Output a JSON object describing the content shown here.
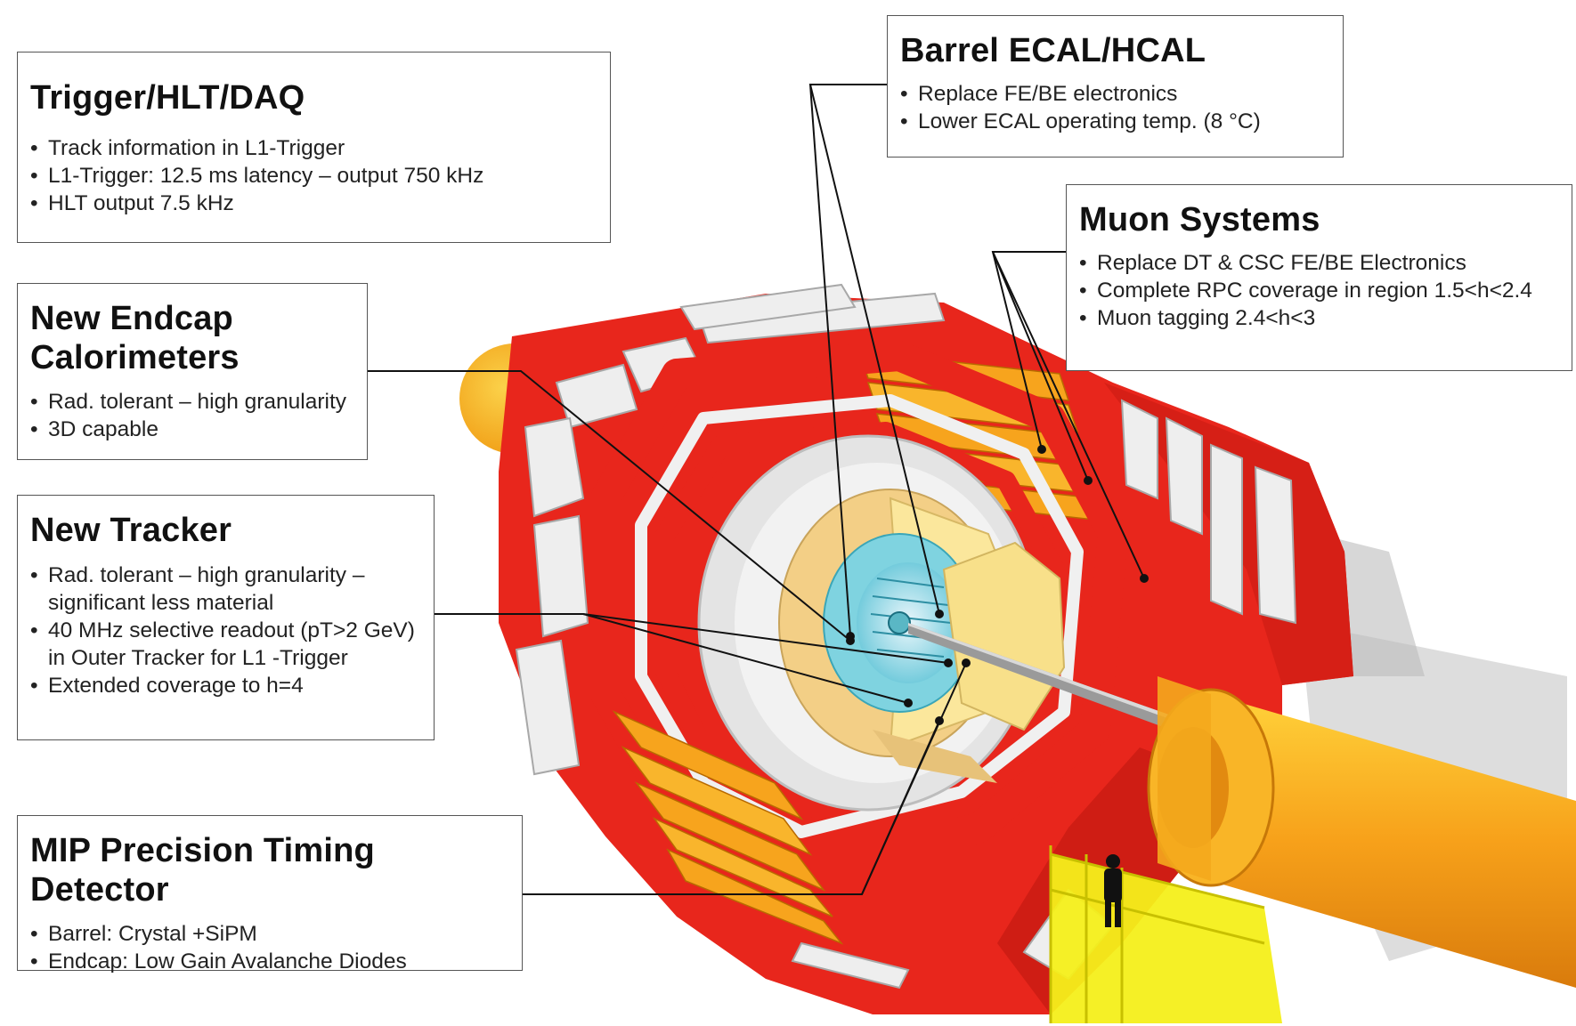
{
  "callouts": {
    "trigger": {
      "title": "Trigger/HLT/DAQ",
      "items": [
        "Track information in L1-Trigger",
        "L1-Trigger: 12.5 ms latency – output 750 kHz",
        "HLT output 7.5 kHz"
      ]
    },
    "endcap": {
      "title_line1": "New Endcap",
      "title_line2": "Calorimeters",
      "items": [
        "Rad. tolerant – high granularity",
        "3D capable"
      ]
    },
    "tracker": {
      "title": "New Tracker",
      "items": [
        "Rad. tolerant – high granularity –",
        "significant less material",
        "40 MHz selective readout (pT>2 GeV)",
        "in Outer Tracker for L1 -Trigger",
        "Extended coverage to h=4"
      ]
    },
    "mip": {
      "title": "MIP Precision Timing Detector",
      "items": [
        "Barrel: Crystal +SiPM",
        "Endcap: Low Gain Avalanche Diodes"
      ]
    },
    "ecal": {
      "title": "Barrel ECAL/HCAL",
      "items": [
        "Replace FE/BE electronics",
        "Lower ECAL operating temp. (8 °C)"
      ]
    },
    "muon": {
      "title": "Muon Systems",
      "items": [
        "Replace DT & CSC FE/BE Electronics",
        "Complete RPC coverage in region 1.5<h<2.4",
        "Muon tagging 2.4<h<3"
      ]
    }
  },
  "colors": {
    "outer_red": "#e8261c",
    "muon_orange": "#f7a41d",
    "calo_yellow": "#f8e08a",
    "tracker_cyan": "#7fd3e0",
    "structure_grey": "#d9d9d9",
    "support_yellow": "#f4ef1a",
    "leader_line": "#111111"
  }
}
